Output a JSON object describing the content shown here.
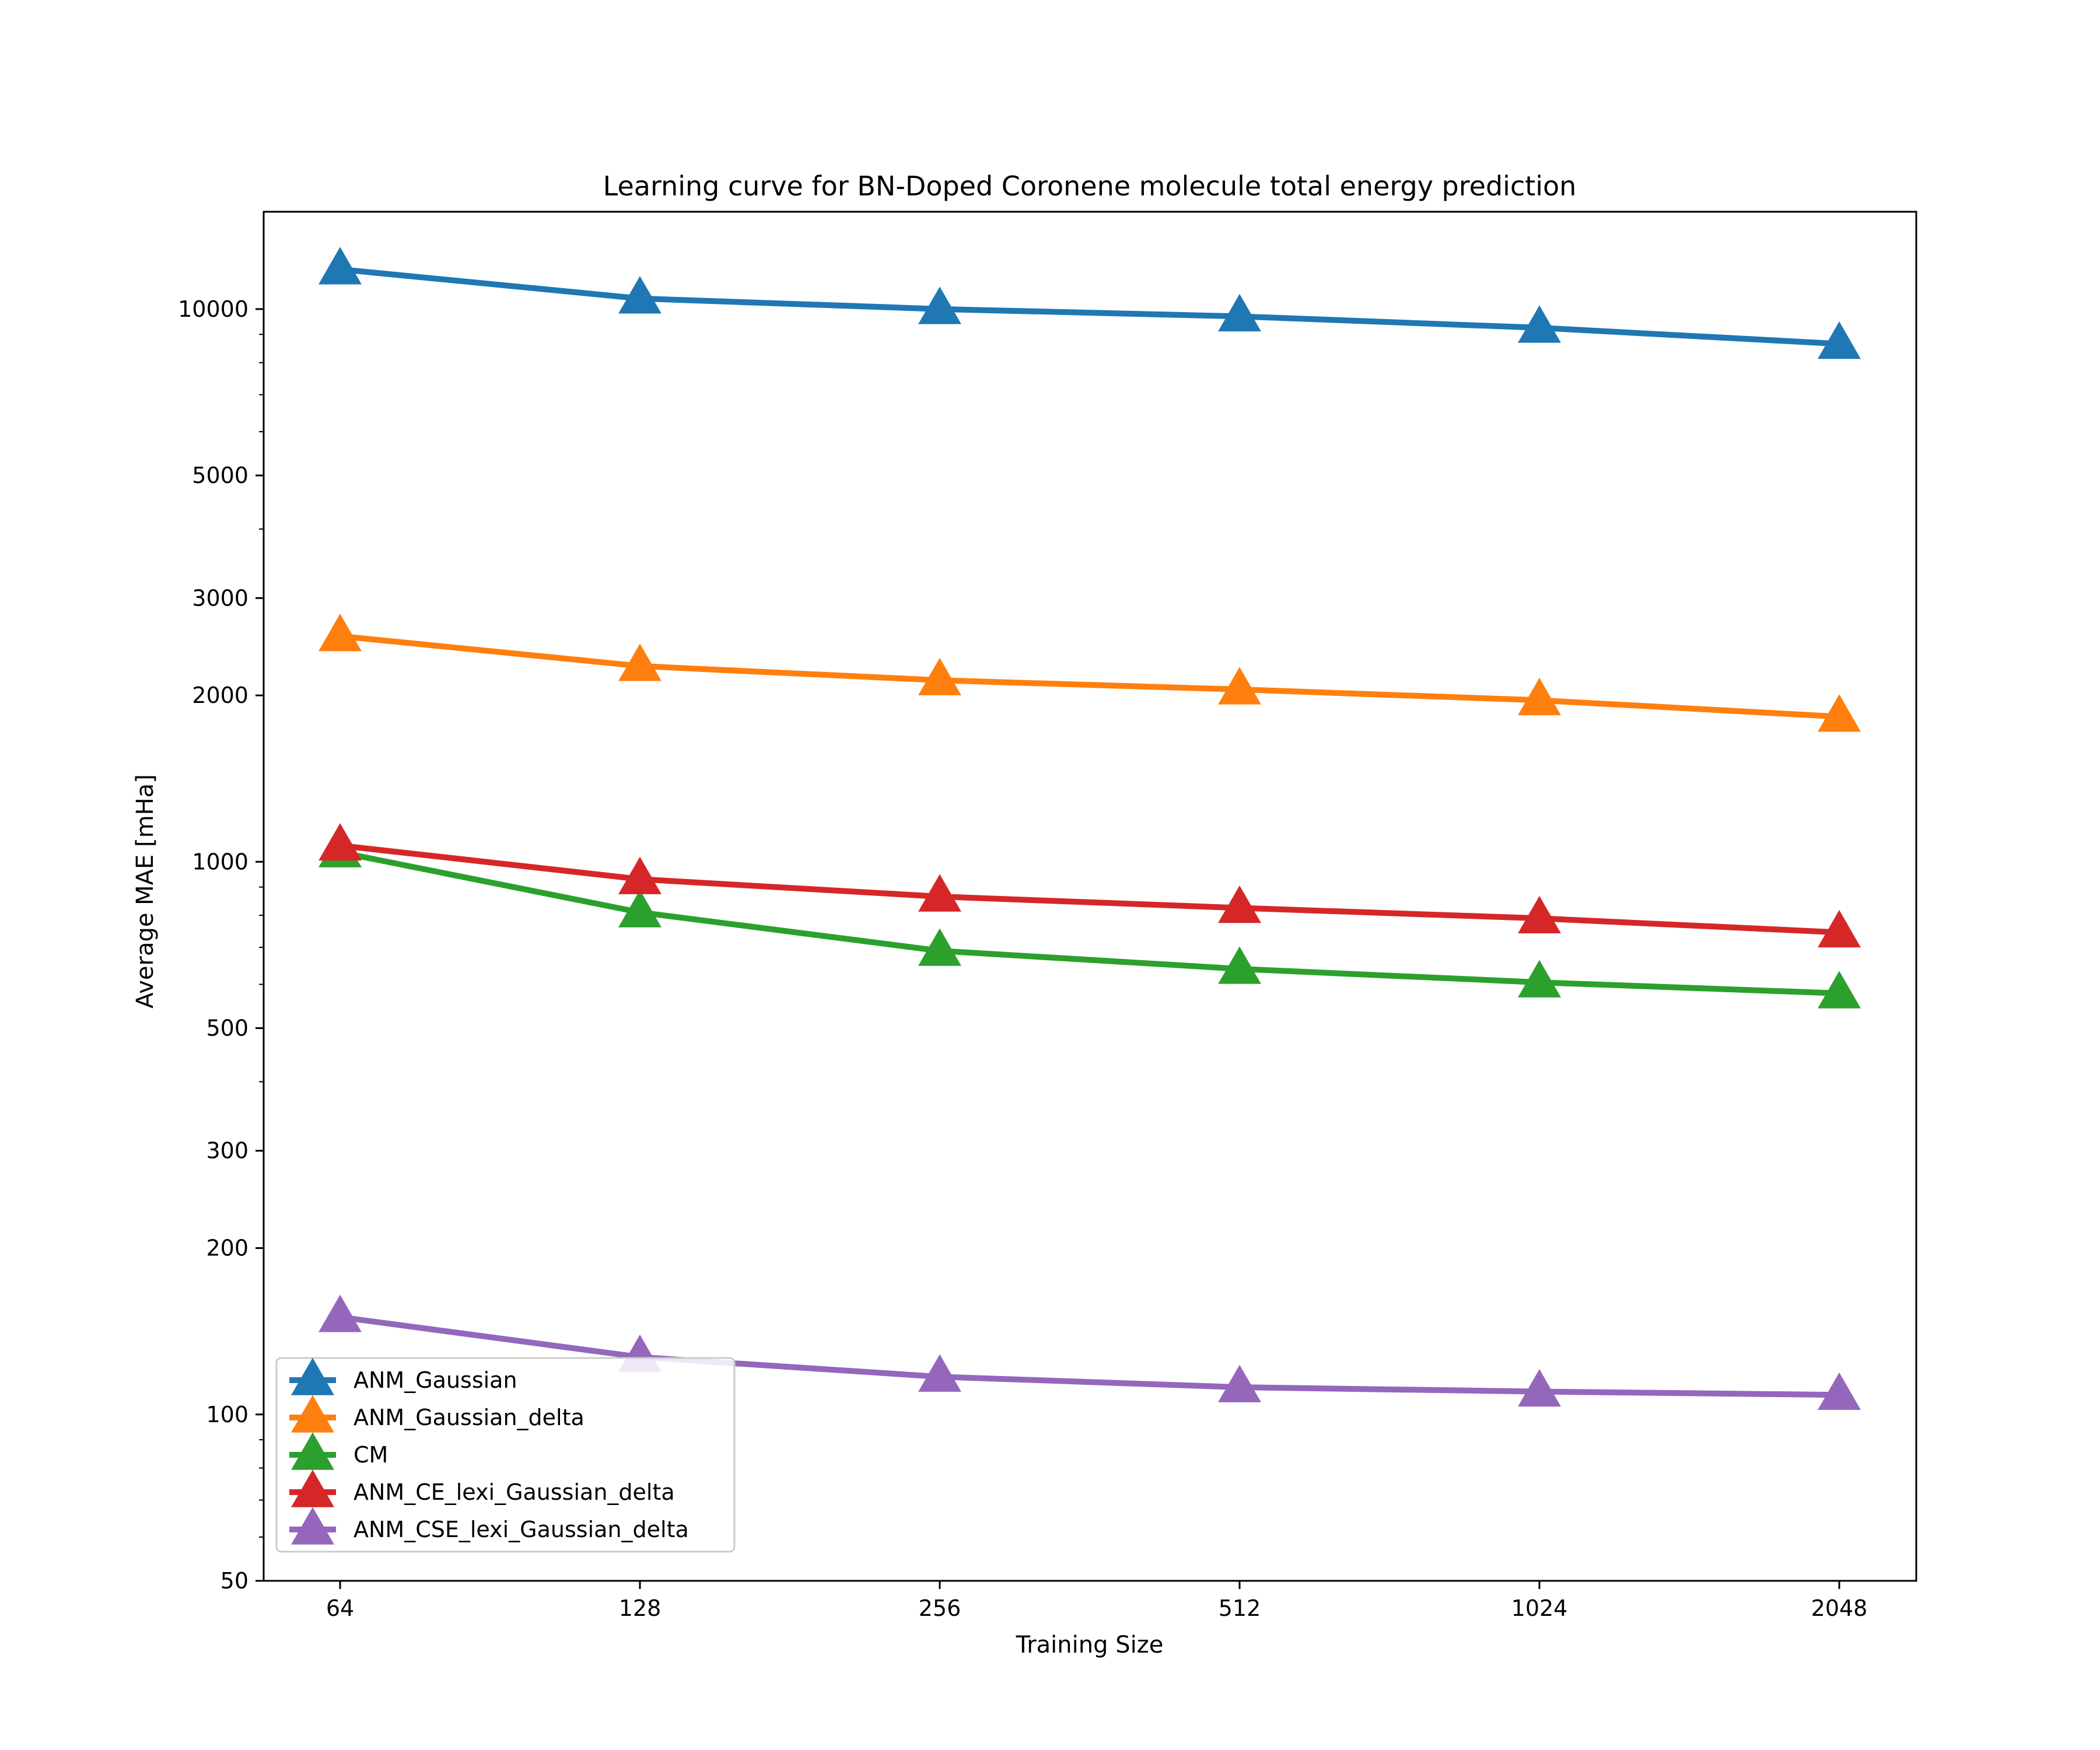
{
  "chart_data": {
    "type": "line",
    "title": "Learning curve for BN-Doped Coronene molecule total energy prediction",
    "xlabel": "Training Size",
    "ylabel": "Average MAE [mHa]",
    "x_scale": "log2",
    "y_scale": "log",
    "x": [
      64,
      128,
      256,
      512,
      1024,
      2048
    ],
    "x_tick_labels": [
      "64",
      "128",
      "256",
      "512",
      "1024",
      "2048"
    ],
    "ylim": [
      50,
      15000
    ],
    "y_ticks": [
      50,
      100,
      200,
      300,
      500,
      1000,
      2000,
      3000,
      5000,
      10000
    ],
    "y_tick_labels": [
      "50",
      "100",
      "200",
      "300",
      "500",
      "1000",
      "2000",
      "3000",
      "5000",
      "10000"
    ],
    "grid": false,
    "legend_position": "lower-left",
    "marker": "triangle",
    "series": [
      {
        "name": "ANM_Gaussian",
        "color": "#1f77b4",
        "values": [
          11800,
          10450,
          10000,
          9700,
          9250,
          8650
        ]
      },
      {
        "name": "ANM_Gaussian_delta",
        "color": "#ff7f0e",
        "values": [
          2560,
          2260,
          2130,
          2050,
          1960,
          1830
        ]
      },
      {
        "name": "CM",
        "color": "#2ca02c",
        "values": [
          1040,
          810,
          690,
          640,
          605,
          578
        ]
      },
      {
        "name": "ANM_CE_lexi_Gaussian_delta",
        "color": "#d62728",
        "values": [
          1070,
          930,
          865,
          825,
          790,
          745
        ]
      },
      {
        "name": "ANM_CSE_lexi_Gaussian_delta",
        "color": "#9467bd",
        "values": [
          150,
          127,
          117,
          112,
          110,
          108.5
        ]
      }
    ]
  }
}
